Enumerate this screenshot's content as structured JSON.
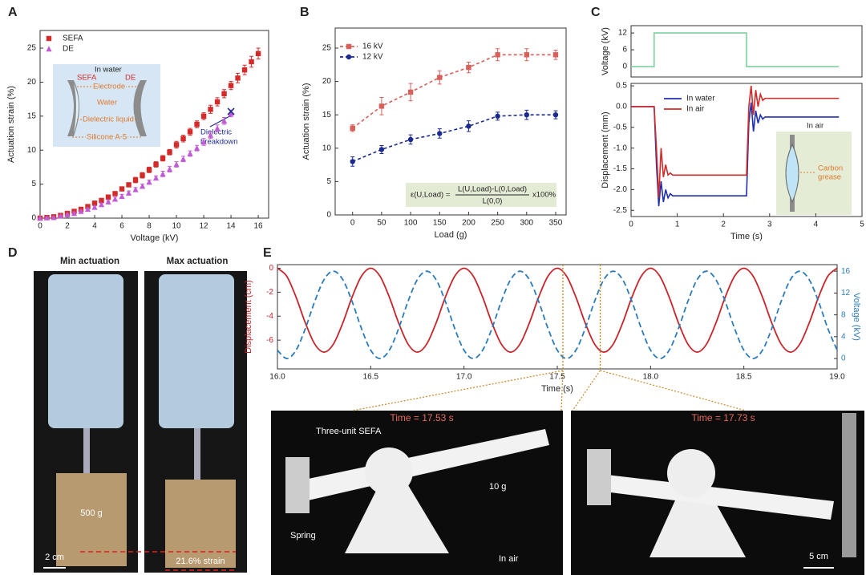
{
  "chart_data": [
    {
      "type": "scatter",
      "panel": "A",
      "xlabel": "Voltage (kV)",
      "ylabel": "Actuation strain (%)",
      "xlim": [
        0,
        16.76
      ],
      "ylim": [
        0,
        27.6
      ],
      "xticks": [
        0,
        2,
        4,
        6,
        8,
        10,
        12,
        14,
        16
      ],
      "yticks": [
        0,
        5,
        10,
        15,
        20,
        25
      ],
      "legend": "upper left",
      "series": [
        {
          "name": "SEFA",
          "color": "#d42a2a",
          "marker": "square",
          "x": [
            0,
            0.5,
            1,
            1.5,
            2,
            2.5,
            3,
            3.5,
            4,
            4.5,
            5,
            5.5,
            6,
            6.5,
            7,
            7.5,
            8,
            8.5,
            9,
            9.5,
            10,
            10.5,
            11,
            11.5,
            12,
            12.5,
            13,
            13.5,
            14,
            14.5,
            15,
            15.5,
            16
          ],
          "values": [
            0,
            0.1,
            0.2,
            0.4,
            0.7,
            1.0,
            1.3,
            1.7,
            2.2,
            2.6,
            3.1,
            3.6,
            4.3,
            4.9,
            5.6,
            6.3,
            7.1,
            7.9,
            8.8,
            9.7,
            10.8,
            11.7,
            12.7,
            13.8,
            15.0,
            16.0,
            17.1,
            18.3,
            19.5,
            20.6,
            21.8,
            23.0,
            24.2
          ],
          "errors": [
            0,
            0.1,
            0.1,
            0.1,
            0.2,
            0.2,
            0.2,
            0.2,
            0.3,
            0.3,
            0.3,
            0.3,
            0.3,
            0.3,
            0.4,
            0.4,
            0.4,
            0.4,
            0.4,
            0.4,
            0.5,
            0.5,
            0.5,
            0.5,
            0.5,
            0.6,
            0.6,
            0.6,
            0.6,
            0.7,
            0.7,
            0.8,
            0.8
          ]
        },
        {
          "name": "DE",
          "color": "#c25ad6",
          "marker": "triangle",
          "x": [
            0,
            0.5,
            1,
            1.5,
            2,
            2.5,
            3,
            3.5,
            4,
            4.5,
            5,
            5.5,
            6,
            6.5,
            7,
            7.5,
            8,
            8.5,
            9,
            9.5,
            10,
            10.5,
            11,
            11.5,
            12,
            12.5,
            13,
            13.5,
            14
          ],
          "values": [
            0,
            0.05,
            0.1,
            0.3,
            0.5,
            0.7,
            1.0,
            1.3,
            1.6,
            2.0,
            2.4,
            2.8,
            3.2,
            3.7,
            4.2,
            4.7,
            5.3,
            5.9,
            6.5,
            7.2,
            7.9,
            8.7,
            9.5,
            10.3,
            11.2,
            12.2,
            13.2,
            14.3,
            15.4
          ],
          "errors": [
            0,
            0.1,
            0.1,
            0.1,
            0.1,
            0.2,
            0.2,
            0.2,
            0.2,
            0.2,
            0.2,
            0.3,
            0.3,
            0.3,
            0.3,
            0.3,
            0.3,
            0.3,
            0.4,
            0.4,
            0.4,
            0.4,
            0.4,
            0.4,
            0.5,
            0.5,
            0.5,
            0.5,
            0.5
          ]
        }
      ],
      "breakdown": {
        "x": 14,
        "y": 15.7
      },
      "annotations": [
        "In water",
        "SEFA",
        "DE",
        "Electrode",
        "Water",
        "Dielectric liquid",
        "Silicone A-5",
        "Dielectric",
        "breakdown"
      ]
    },
    {
      "type": "line",
      "panel": "B",
      "dashed": true,
      "xlabel": "Load (g)",
      "ylabel": "Actuation strain (%)",
      "xlim": [
        -30,
        368
      ],
      "ylim": [
        0,
        28
      ],
      "xticks": [
        0,
        50,
        100,
        150,
        200,
        250,
        300,
        350
      ],
      "yticks": [
        0,
        5,
        10,
        15,
        20,
        25
      ],
      "legend": "upper left",
      "x": [
        0,
        50,
        100,
        150,
        200,
        250,
        300,
        350
      ],
      "series": [
        {
          "name": "16 kV",
          "color": "#d9605a",
          "marker": "square",
          "values": [
            13.0,
            16.3,
            18.4,
            20.6,
            22.1,
            24.0,
            24.0,
            24.0
          ],
          "errors": [
            0.5,
            1.3,
            1.3,
            1.0,
            0.8,
            0.9,
            0.9,
            0.7
          ]
        },
        {
          "name": "12 kV",
          "color": "#1c2a8f",
          "marker": "circle",
          "values": [
            8.0,
            9.8,
            11.3,
            12.2,
            13.3,
            14.8,
            15.0,
            15.0
          ],
          "errors": [
            0.7,
            0.6,
            0.7,
            0.7,
            0.8,
            0.6,
            0.7,
            0.6
          ]
        }
      ],
      "formula": [
        "ε(U,Load) =",
        "L(U,Load)-L(0,Load)",
        "L(0,0)",
        "x100%"
      ]
    },
    {
      "type": "line",
      "panel": "C",
      "ylabel": "Voltage (kV)",
      "xlim": [
        0,
        5
      ],
      "ylim": [
        -3.7,
        14.6
      ],
      "yticks": [
        0,
        6,
        12
      ],
      "series": [
        {
          "color": "#7fd1a0",
          "x": [
            0,
            0.5,
            0.5,
            2.5,
            2.5,
            4.5
          ],
          "values": [
            0,
            0,
            12,
            12,
            0,
            0
          ]
        }
      ]
    },
    {
      "type": "line",
      "xlabel": "Time (s)",
      "ylabel": "Displacement (mm)",
      "xlim": [
        0,
        5
      ],
      "ylim": [
        -2.65,
        0.56
      ],
      "legend": "upper left",
      "xticks": [
        0,
        1,
        2,
        3,
        4,
        5
      ],
      "yticks": [
        -2.5,
        {
          "value": -2,
          "label": "-2.0"
        },
        -1.5,
        {
          "value": -1,
          "label": "-1.0"
        },
        -0.5,
        {
          "value": 0,
          "label": "0.0"
        },
        0.5
      ],
      "x": [
        0,
        0.5,
        0.55,
        0.6,
        0.65,
        0.7,
        0.75,
        0.8,
        0.85,
        0.9,
        1.0,
        2.5,
        2.55,
        2.6,
        2.65,
        2.7,
        2.75,
        2.8,
        2.85,
        2.9,
        3.0,
        4.5
      ],
      "series": [
        {
          "name": "In water",
          "color": "#1f2fb0",
          "values": [
            0,
            0,
            -1.4,
            -2.4,
            -1.8,
            -2.3,
            -2.0,
            -2.2,
            -2.1,
            -2.15,
            -2.15,
            -2.15,
            -0.4,
            0.1,
            -0.6,
            -0.1,
            -0.4,
            -0.2,
            -0.3,
            -0.25,
            -0.25,
            -0.25
          ]
        },
        {
          "name": "In air",
          "color": "#d42a2a",
          "values": [
            0,
            0,
            -1.0,
            -2.2,
            -1.0,
            -1.7,
            -1.4,
            -1.65,
            -1.6,
            -1.65,
            -1.65,
            -1.65,
            0.0,
            0.5,
            -0.2,
            0.4,
            0.0,
            0.3,
            0.15,
            0.2,
            0.2,
            0.2
          ]
        }
      ],
      "annotations": [
        "In air",
        "Carbon",
        "grease"
      ]
    },
    {
      "type": "line",
      "panel": "E",
      "xlabel": "Time (s)",
      "ylabel": "Displacement (cm)",
      "y2label": "Voltage (kV)",
      "xlim": [
        16,
        19
      ],
      "ylim": [
        -8.4,
        0.3
      ],
      "y2lim": [
        -1.9,
        17.2
      ],
      "xticks": [
        {
          "value": 16,
          "label": "16.0"
        },
        {
          "value": 16.5,
          "label": "16.5"
        },
        {
          "value": 17,
          "label": "17.0"
        },
        {
          "value": 17.5,
          "label": "17.5"
        },
        {
          "value": 18,
          "label": "18.0"
        },
        {
          "value": 18.5,
          "label": "18.5"
        },
        {
          "value": 19,
          "label": "19.0"
        }
      ],
      "yticks": [
        0,
        -2,
        -4,
        -6
      ],
      "y2ticks": [
        0,
        4,
        8,
        12,
        16
      ],
      "x": [
        16,
        16.05,
        16.1,
        16.15,
        16.2,
        16.25,
        16.3,
        16.35,
        16.4,
        16.45,
        16.5,
        16.55,
        16.6,
        16.65,
        16.7,
        16.75,
        16.8,
        16.85,
        16.9,
        16.95,
        17,
        17.05,
        17.1,
        17.15,
        17.2,
        17.25,
        17.3,
        17.35,
        17.4,
        17.45,
        17.5,
        17.55,
        17.6,
        17.65,
        17.7,
        17.75,
        17.8,
        17.85,
        17.9,
        17.95,
        18,
        18.05,
        18.1,
        18.15,
        18.2,
        18.25,
        18.3,
        18.35,
        18.4,
        18.45,
        18.5,
        18.55,
        18.6,
        18.65,
        18.7,
        18.75,
        18.8,
        18.85,
        18.9,
        18.95,
        19
      ],
      "series": [
        {
          "color": "#c8252b",
          "values": [
            0,
            -0.67,
            -2.42,
            -4.58,
            -6.33,
            -7,
            -6.33,
            -4.58,
            -2.42,
            -0.67,
            0,
            -0.67,
            -2.42,
            -4.58,
            -6.33,
            -7,
            -6.33,
            -4.58,
            -2.42,
            -0.67,
            0,
            -0.67,
            -2.42,
            -4.58,
            -6.33,
            -7,
            -6.33,
            -4.58,
            -2.42,
            -0.67,
            0,
            -0.67,
            -2.42,
            -4.58,
            -6.33,
            -7,
            -6.33,
            -4.58,
            -2.42,
            -0.67,
            0,
            -0.67,
            -2.42,
            -4.58,
            -6.33,
            -7,
            -6.33,
            -4.58,
            -2.42,
            -0.67,
            0,
            -0.67,
            -2.42,
            -4.58,
            -6.33,
            -7,
            -6.33,
            -4.58,
            -2.42,
            -0.67,
            0
          ]
        },
        {
          "color": "#2b7bba",
          "dashed": true,
          "axis": "y2",
          "values": [
            1.53,
            0,
            1.53,
            5.53,
            10.47,
            14.47,
            16,
            14.47,
            10.47,
            5.53,
            1.53,
            0,
            1.53,
            5.53,
            10.47,
            14.47,
            16,
            14.47,
            10.47,
            5.53,
            1.53,
            0,
            1.53,
            5.53,
            10.47,
            14.47,
            16,
            14.47,
            10.47,
            5.53,
            1.53,
            0,
            1.53,
            5.53,
            10.47,
            14.47,
            16,
            14.47,
            10.47,
            5.53,
            1.53,
            0,
            1.53,
            5.53,
            10.47,
            14.47,
            16,
            14.47,
            10.47,
            5.53,
            1.53,
            0,
            1.53,
            5.53,
            10.47,
            14.47,
            16,
            14.47,
            10.47,
            5.53,
            1.53
          ]
        }
      ],
      "markers": [
        17.53,
        17.73
      ]
    }
  ],
  "photos": {
    "D": {
      "panel": "D",
      "titles": [
        "Min actuation",
        "Max actuation"
      ],
      "weight": "500 g",
      "scale": "2 cm",
      "strain": "21.6% strain"
    },
    "E": {
      "times": [
        "Time = 17.53 s",
        "Time = 17.73 s"
      ],
      "labels": [
        "Three-unit SEFA",
        "10 g",
        "Spring",
        "In air"
      ],
      "scale": "5 cm"
    }
  }
}
